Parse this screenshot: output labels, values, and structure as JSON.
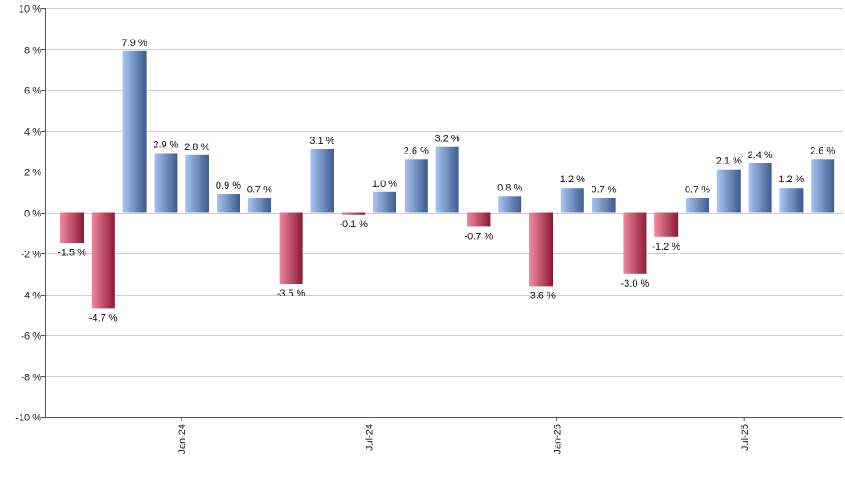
{
  "chart_data": {
    "type": "bar",
    "title": "",
    "xlabel": "",
    "ylabel": "",
    "ylim": [
      -10,
      10
    ],
    "y_ticks": [
      10,
      8,
      6,
      4,
      2,
      0,
      -2,
      -4,
      -6,
      -8,
      -10
    ],
    "y_tick_labels": [
      "10 %",
      "8 %",
      "6 %",
      "4 %",
      "2 %",
      "0 %",
      "-2 %",
      "-4 %",
      "-6 %",
      "-8 %",
      "-10 %"
    ],
    "grid": true,
    "x_tick_labels": [
      {
        "label": "Jan-24",
        "index": 4
      },
      {
        "label": "Jul-24",
        "index": 10
      },
      {
        "label": "Jan-25",
        "index": 16
      },
      {
        "label": "Jul-25",
        "index": 22
      }
    ],
    "values": [
      -1.5,
      -4.7,
      7.9,
      2.9,
      2.8,
      0.9,
      0.7,
      -3.5,
      3.1,
      -0.1,
      1.0,
      2.6,
      3.2,
      -0.7,
      0.8,
      -3.6,
      1.2,
      0.7,
      -3.0,
      -1.2,
      0.7,
      2.1,
      2.4,
      1.2,
      2.6
    ],
    "labels": [
      "-1.5 %",
      "-4.7 %",
      "7.9 %",
      "2.9 %",
      "2.8 %",
      "0.9 %",
      "0.7 %",
      "-3.5 %",
      "3.1 %",
      "-0.1 %",
      "1.0 %",
      "2.6 %",
      "3.2 %",
      "-0.7 %",
      "0.8 %",
      "-3.6 %",
      "1.2 %",
      "0.7 %",
      "-3.0 %",
      "-1.2 %",
      "0.7 %",
      "2.1 %",
      "2.4 %",
      "1.2 %",
      "2.6 %"
    ],
    "colors": {
      "positive_light": "#a8c6f2",
      "positive_dark": "#3e5a8e",
      "negative_light": "#f08aa0",
      "negative_dark": "#8a1a34",
      "grid": "#cfcfcf"
    }
  }
}
